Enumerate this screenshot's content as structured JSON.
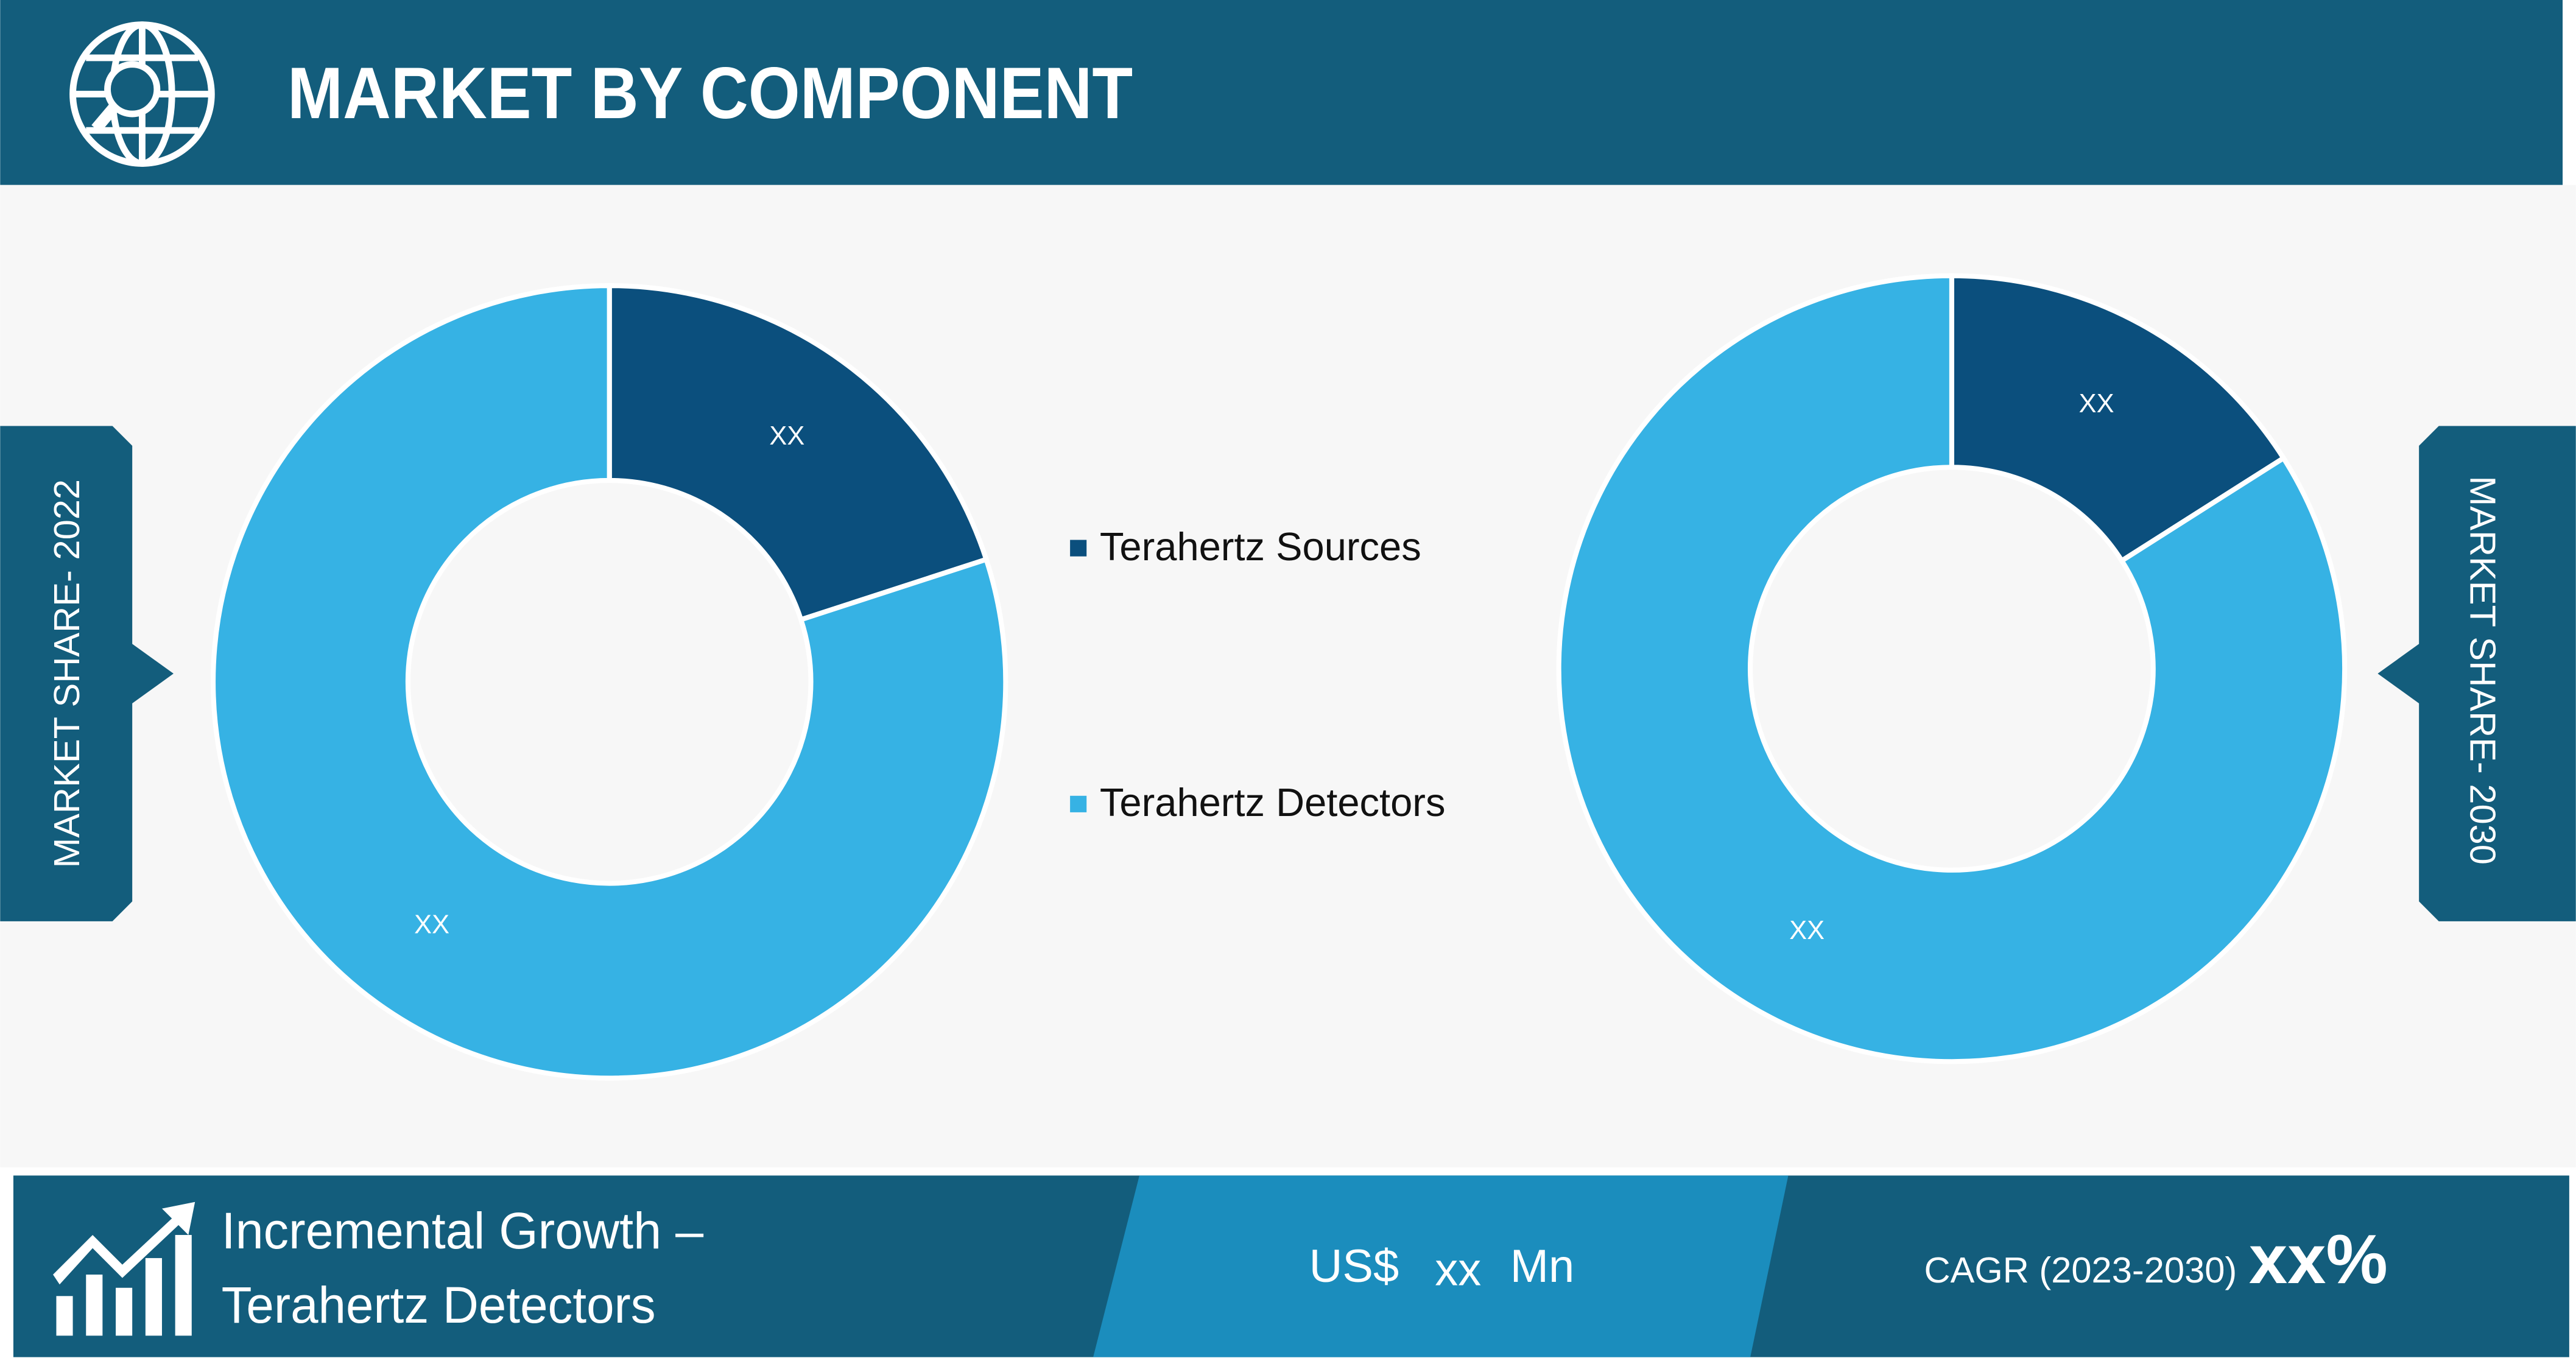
{
  "header": {
    "title": "MARKET BY COMPONENT"
  },
  "chart_data": [
    {
      "type": "pie",
      "title": "MARKET SHARE- 2022",
      "categories": [
        "Terahertz Sources",
        "Terahertz Detectors"
      ],
      "values": [
        20,
        80
      ],
      "data_labels": [
        "XX",
        "XX"
      ],
      "colors": [
        "#0b4f7d",
        "#36b2e4"
      ]
    },
    {
      "type": "pie",
      "title": "MARKET SHARE- 2030",
      "categories": [
        "Terahertz Sources",
        "Terahertz Detectors"
      ],
      "values": [
        16,
        84
      ],
      "data_labels": [
        "XX",
        "XX"
      ],
      "colors": [
        "#0b4f7d",
        "#36b2e4"
      ]
    }
  ],
  "footer": {
    "growth_label": "Incremental Growth –",
    "growth_segment": "Terahertz Detectors",
    "currency": "US$",
    "amount": "xx",
    "unit": "Mn",
    "cagr_label": "CAGR (2023-2030)",
    "cagr_value": "xx%"
  }
}
